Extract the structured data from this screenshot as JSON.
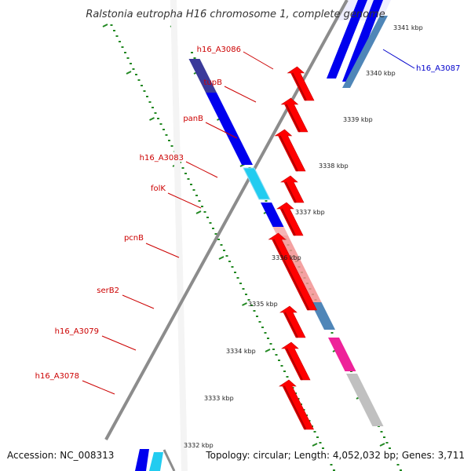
{
  "title": "Ralstonia eutropha H16 chromosome 1, complete genome",
  "footer": {
    "accession": "Accession: NC_008313",
    "topology": "Topology: circular; Length: 4,052,032 bp; Genes: 3,711"
  },
  "colors": {
    "gene_red": "#ff0000",
    "gene_blue": "#0000ee",
    "gene_dark_blue": "#3a3a9a",
    "gene_cyan": "#22ccf0",
    "gene_pink": "#f29090",
    "gene_steel": "#4f86b8",
    "gene_magenta": "#ee2299",
    "gene_gray": "#c0c0c0",
    "backbone": "#8c8c8c",
    "tick": "#228822",
    "label_red": "#cc0000",
    "label_blue": "#0000cc"
  },
  "genes": [
    {
      "name": "h16_A3086",
      "color": "gene_dark_blue",
      "strand": "minus",
      "labeled": true
    },
    {
      "name": "tupB",
      "color": "gene_blue",
      "strand": "minus",
      "labeled": true
    },
    {
      "name": "panB",
      "color": "gene_blue",
      "strand": "minus",
      "labeled": true
    },
    {
      "name": "h16_A3083",
      "color": "gene_cyan",
      "strand": "minus",
      "labeled": true
    },
    {
      "name": "folK",
      "color": "gene_blue",
      "strand": "minus",
      "labeled": true
    },
    {
      "name": "pcnB",
      "color": "gene_pink",
      "strand": "minus",
      "labeled": true
    },
    {
      "name": "serB2",
      "color": "gene_steel",
      "strand": "minus",
      "labeled": true
    },
    {
      "name": "h16_A3079",
      "color": "gene_magenta",
      "strand": "minus",
      "labeled": true
    },
    {
      "name": "h16_A3078",
      "color": "gene_gray",
      "strand": "minus",
      "labeled": true
    },
    {
      "name": "h16_A3087",
      "color": "gene_steel",
      "strand": "minus",
      "labeled": true
    }
  ],
  "kbp_markers": [
    "3341 kbp",
    "3340 kbp",
    "3339 kbp",
    "3338 kbp",
    "3337 kbp",
    "3336 kbp",
    "3335 kbp",
    "3334 kbp",
    "3333 kbp",
    "3332 kbp"
  ]
}
